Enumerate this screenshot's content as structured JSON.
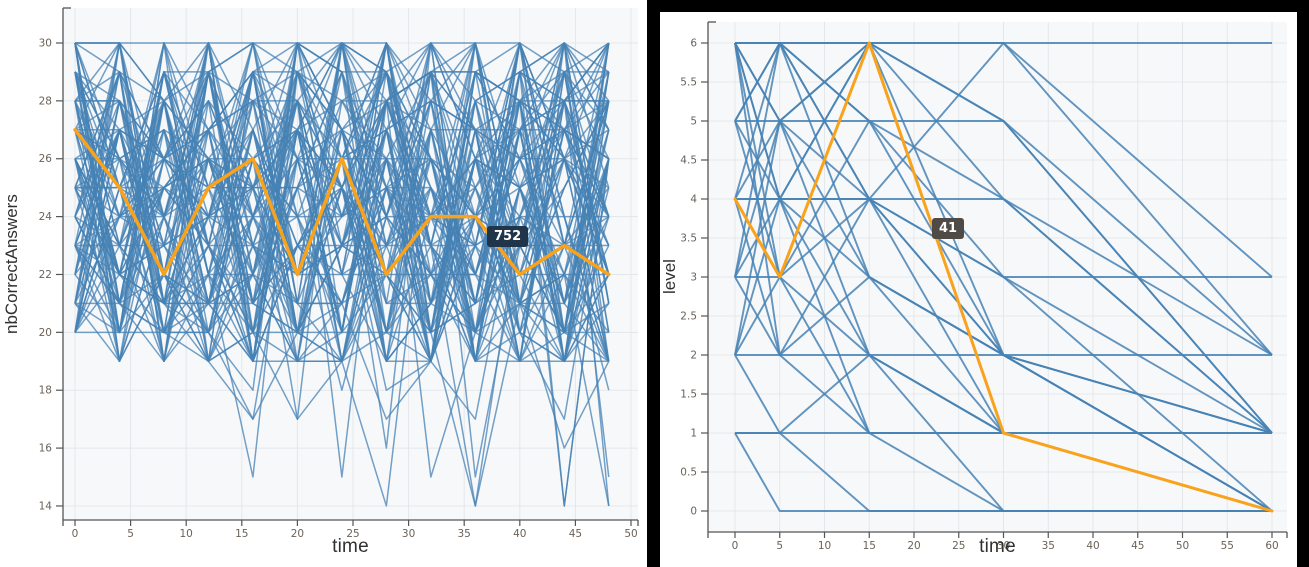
{
  "chart_data": [
    {
      "type": "line",
      "title": "",
      "xlabel": "time",
      "ylabel": "nbCorrectAnswers",
      "x": [
        0,
        4,
        8,
        12,
        16,
        20,
        24,
        28,
        32,
        36,
        40,
        44,
        48
      ],
      "x_ticks": [
        0,
        5,
        10,
        15,
        20,
        25,
        30,
        35,
        40,
        45,
        50
      ],
      "y_ticks": [
        14,
        16,
        18,
        20,
        22,
        24,
        26,
        28,
        30
      ],
      "xlim": [
        0,
        50
      ],
      "ylim": [
        14,
        30
      ],
      "grid": true,
      "legend": "none",
      "line_color": "#4682b4",
      "highlight_color": "#f9a21b",
      "highlight": {
        "name": "752",
        "values": [
          27,
          25,
          22,
          25,
          26,
          22,
          26,
          22,
          24,
          24,
          22,
          23,
          22
        ]
      },
      "tooltip": {
        "text": "752",
        "bg": "#20344a"
      },
      "background_series": {
        "description": "dense unreadable spaghetti of student trajectories, integer values",
        "count": 110,
        "seed": 97531,
        "value_min": 14,
        "value_max": 30,
        "typical_min": 19,
        "start_min": 20,
        "dip_chance": 0.025
      }
    },
    {
      "type": "line",
      "title": "",
      "xlabel": "time",
      "ylabel": "level",
      "x": [
        0,
        5,
        15,
        30,
        60
      ],
      "x_ticks": [
        0,
        5,
        10,
        15,
        20,
        25,
        30,
        35,
        40,
        45,
        50,
        55,
        60
      ],
      "y_ticks": [
        0,
        0.5,
        1,
        1.5,
        2,
        2.5,
        3,
        3.5,
        4,
        4.5,
        5,
        5.5,
        6
      ],
      "xlim": [
        0,
        60
      ],
      "ylim": [
        0,
        6
      ],
      "grid": true,
      "legend": "none",
      "line_color": "#4682b4",
      "highlight_color": "#f9a21b",
      "highlight": {
        "name": "41",
        "values": [
          4,
          3,
          6,
          1,
          0
        ]
      },
      "tooltip": {
        "text": "41",
        "bg": "#4f4a45"
      },
      "series": [
        [
          6,
          6,
          6,
          6,
          6
        ],
        [
          5,
          6,
          3,
          2,
          0
        ],
        [
          6,
          5,
          6,
          4,
          1
        ],
        [
          3,
          6,
          4,
          2,
          0
        ],
        [
          4,
          4,
          4,
          4,
          1
        ],
        [
          2,
          2,
          2,
          2,
          2
        ],
        [
          1,
          1,
          1,
          1,
          1
        ],
        [
          1,
          0,
          0,
          0,
          0
        ],
        [
          6,
          3,
          2,
          1,
          0
        ],
        [
          5,
          5,
          2,
          1,
          0
        ],
        [
          2,
          5,
          5,
          5,
          1
        ],
        [
          6,
          4,
          3,
          2,
          1
        ],
        [
          3,
          2,
          1,
          0,
          0
        ],
        [
          4,
          6,
          5,
          3,
          1
        ],
        [
          2,
          3,
          4,
          2,
          0
        ],
        [
          5,
          4,
          6,
          6,
          2
        ],
        [
          6,
          6,
          4,
          1,
          0
        ],
        [
          3,
          4,
          2,
          1,
          1
        ],
        [
          4,
          2,
          3,
          1,
          0
        ],
        [
          6,
          5,
          4,
          6,
          3
        ],
        [
          2,
          1,
          2,
          0,
          0
        ],
        [
          5,
          6,
          6,
          5,
          2
        ],
        [
          3,
          3,
          1,
          1,
          0
        ],
        [
          4,
          5,
          3,
          2,
          1
        ],
        [
          6,
          2,
          4,
          3,
          0
        ],
        [
          1,
          1,
          0,
          0,
          0
        ],
        [
          5,
          3,
          5,
          2,
          1
        ],
        [
          4,
          4,
          6,
          5,
          1
        ],
        [
          6,
          6,
          5,
          4,
          2
        ],
        [
          2,
          4,
          1,
          1,
          0
        ],
        [
          3,
          5,
          6,
          2,
          0
        ],
        [
          6,
          4,
          4,
          3,
          3
        ]
      ]
    }
  ],
  "colors": {
    "blue_line": "#4682b4",
    "orange_line": "#f9a21b",
    "grid": "#e4e7ea",
    "plot_bg": "#f7f8fa",
    "axis": "#555555",
    "tick_label": "#6b6258",
    "frame": "#000000"
  }
}
